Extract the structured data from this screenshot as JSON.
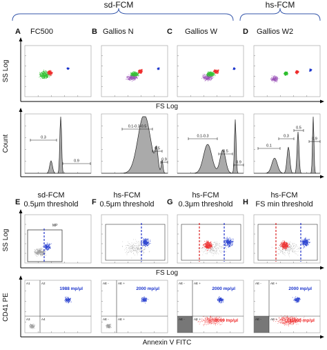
{
  "header": {
    "group_sd": "sd-FCM",
    "group_hs": "hs-FCM"
  },
  "top_row": {
    "panels": [
      {
        "letter": "A",
        "instrument": "FC500"
      },
      {
        "letter": "B",
        "instrument": "Gallios N"
      },
      {
        "letter": "C",
        "instrument": "Gallios W"
      },
      {
        "letter": "D",
        "instrument": "Gallios W2"
      }
    ],
    "scatter_ylabel": "SS Log",
    "scatter_xlabel": "FS Log",
    "hist_ylabel": "Count",
    "hist_gates": [
      [
        "0.3",
        "0.9"
      ],
      [
        "0.1-0.3-0.5",
        "0.5",
        "0.9"
      ],
      [
        "0.1-0.3",
        "0.5",
        "0.9"
      ],
      [
        "0.1",
        "0.3",
        "0.5",
        "0.9"
      ]
    ]
  },
  "bottom_row": {
    "panels": [
      {
        "letter": "E",
        "method": "sd-FCM",
        "threshold": "0.5μm threshold"
      },
      {
        "letter": "F",
        "method": "hs-FCM",
        "threshold": "0.5μm threshold"
      },
      {
        "letter": "G",
        "method": "hs-FCM",
        "threshold": "0.3μm threshold"
      },
      {
        "letter": "H",
        "method": "hs-FCM",
        "threshold": "FS min threshold"
      }
    ],
    "scatter_ylabel": "SS Log",
    "scatter_xlabel": "FS Log",
    "gate_mp": "MP",
    "fluor_ylabel": "CD41 PE",
    "fluor_xlabel": "Annexin V FITC",
    "quadrants_e": [
      "A1",
      "A2",
      "A3",
      "A4"
    ],
    "quadrants_fgh": [
      "AE -",
      "AE +",
      "AE -",
      "AE +"
    ],
    "counts_blue": [
      "1988 mp/μl",
      "2000 mp/μl",
      "2000 mp/μl",
      "2000 mp/μl"
    ],
    "counts_red": [
      "",
      "",
      "3000 mp/μl",
      "11000 mp/μl"
    ]
  },
  "colors": {
    "sd_blue": "#3355aa",
    "events_green": "#22bb22",
    "events_red": "#ee2222",
    "events_purple": "#8833aa",
    "events_blue": "#1a33cc",
    "events_grey": "#888888",
    "threshold_red": "#dd2222",
    "threshold_blue": "#2233cc"
  }
}
